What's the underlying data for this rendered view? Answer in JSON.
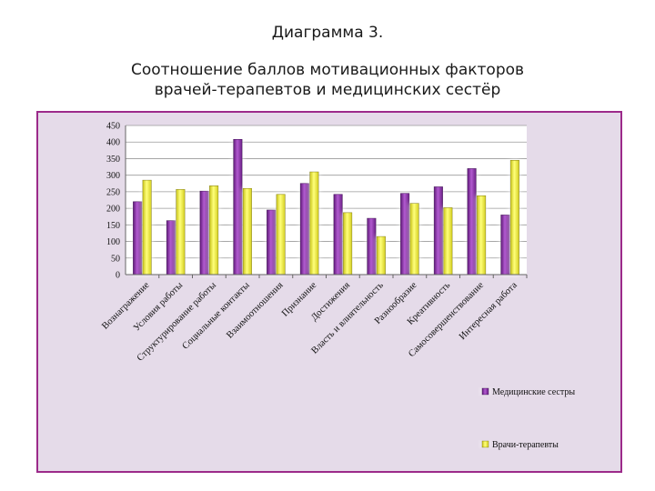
{
  "header": {
    "diagram_label": "Диаграмма 3.",
    "title_line1": "Соотношение баллов мотивационных факторов",
    "title_line2": "врачей-терапевтов и медицинских сестёр"
  },
  "chart_data": {
    "type": "bar",
    "title": "Соотношение баллов мотивационных факторов врачей-терапевтов и медицинских сестёр",
    "xlabel": "",
    "ylabel": "",
    "ylim": [
      0,
      450
    ],
    "yticks": [
      0,
      50,
      100,
      150,
      200,
      250,
      300,
      350,
      400,
      450
    ],
    "grid": true,
    "legend_position": "bottom-right",
    "categories": [
      "Вознагражение",
      "Условия работы",
      "Структурирование работы",
      "Социальные контакты",
      "Взаимоотношения",
      "Признание",
      "Достижения",
      "Власть и влиятельность",
      "Разнообразие",
      "Креативность",
      "Самосовершенствование",
      "Интересная работа"
    ],
    "series": [
      {
        "name": "Медицинские сестры",
        "color": "#8e2fa8",
        "values": [
          220,
          163,
          252,
          408,
          195,
          275,
          242,
          170,
          245,
          265,
          320,
          180
        ]
      },
      {
        "name": "Врачи-терапевты",
        "color": "#f0f02c",
        "values": [
          285,
          257,
          268,
          260,
          242,
          310,
          187,
          115,
          215,
          202,
          238,
          345
        ]
      }
    ]
  }
}
